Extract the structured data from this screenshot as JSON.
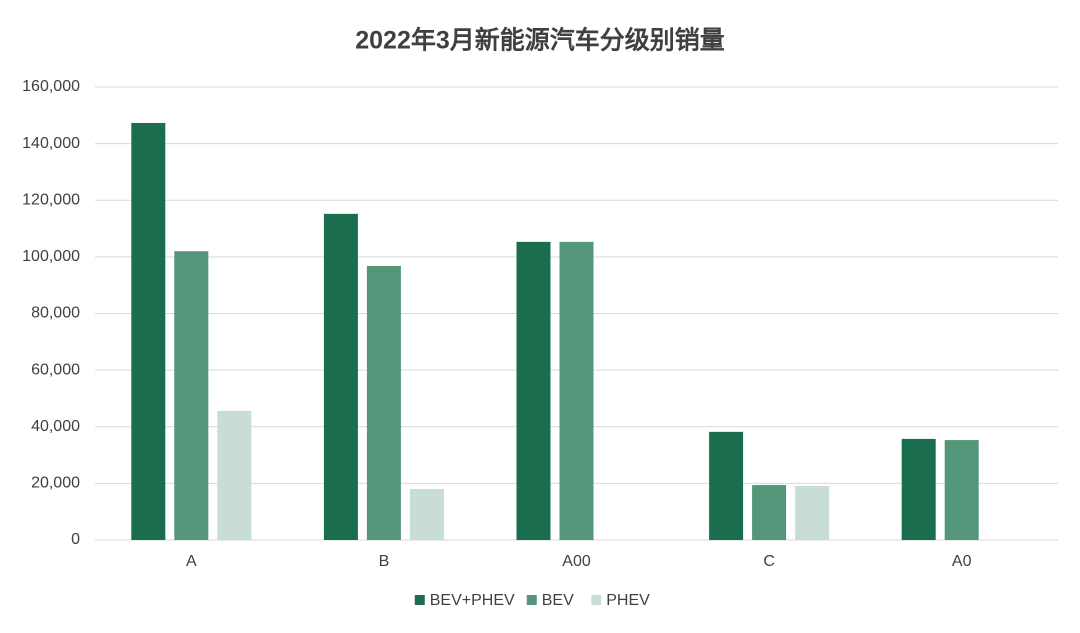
{
  "chart_data": {
    "type": "bar",
    "title": "2022年3月新能源汽车分级别销量",
    "categories": [
      "A",
      "B",
      "A00",
      "C",
      "A0"
    ],
    "series": [
      {
        "name": "BEV+PHEV",
        "color": "#1a6e4e",
        "values": [
          147300,
          115200,
          105300,
          38200,
          35700
        ]
      },
      {
        "name": "BEV",
        "color": "#54967a",
        "values": [
          102000,
          96800,
          105300,
          19400,
          35300
        ]
      },
      {
        "name": "PHEV",
        "color": "#c8ddd5",
        "values": [
          45600,
          18000,
          null,
          19100,
          null
        ]
      }
    ],
    "ylim": [
      0,
      160000
    ],
    "yticks": [
      0,
      {
        "value": 20000,
        "label": "20,000"
      },
      {
        "value": 40000,
        "label": "40,000"
      },
      {
        "value": 60000,
        "label": "60,000"
      },
      {
        "value": 80000,
        "label": "80,000"
      },
      {
        "value": 100000,
        "label": "100,000"
      },
      {
        "value": 120000,
        "label": "120,000"
      },
      {
        "value": 140000,
        "label": "140,000"
      },
      {
        "value": 160000,
        "label": "160,000"
      }
    ],
    "grid": true,
    "legend": "bottom"
  }
}
